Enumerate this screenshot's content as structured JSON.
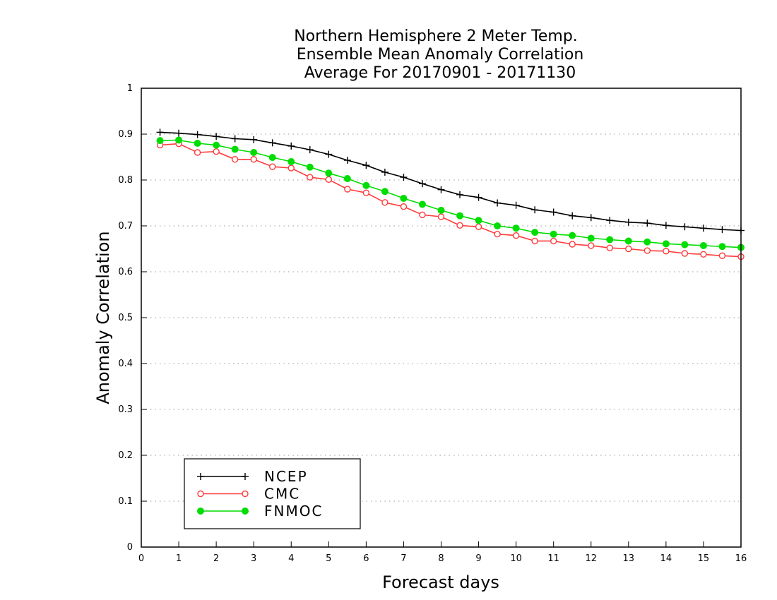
{
  "chart_data": {
    "type": "line",
    "title_lines": [
      "Northern Hemisphere 2 Meter Temp.",
      "Ensemble Mean Anomaly Correlation",
      "Average For 20170901 - 20171130"
    ],
    "xlabel": "Forecast days",
    "ylabel": "Anomaly Correlation",
    "xlim": [
      0,
      16
    ],
    "ylim": [
      0,
      1
    ],
    "xticks": [
      "0",
      "1",
      "2",
      "3",
      "4",
      "5",
      "6",
      "7",
      "8",
      "9",
      "10",
      "11",
      "12",
      "13",
      "14",
      "15",
      "16"
    ],
    "yticks": [
      "0",
      "0.1",
      "0.2",
      "0.3",
      "0.4",
      "0.5",
      "0.6",
      "0.7",
      "0.8",
      "0.9",
      "1"
    ],
    "horizontal_grid": true,
    "legend_position": "bottom-left",
    "x": [
      0.5,
      1,
      1.5,
      2,
      2.5,
      3,
      3.5,
      4,
      4.5,
      5,
      5.5,
      6,
      6.5,
      7,
      7.5,
      8,
      8.5,
      9,
      9.5,
      10,
      10.5,
      11,
      11.5,
      12,
      12.5,
      13,
      13.5,
      14,
      14.5,
      15,
      15.5,
      16
    ],
    "series": [
      {
        "name": "NCEP",
        "color": "#000000",
        "marker": "plus",
        "values": [
          0.904,
          0.902,
          0.899,
          0.895,
          0.89,
          0.888,
          0.881,
          0.874,
          0.866,
          0.856,
          0.843,
          0.832,
          0.817,
          0.806,
          0.792,
          0.779,
          0.768,
          0.762,
          0.75,
          0.745,
          0.735,
          0.73,
          0.722,
          0.718,
          0.712,
          0.708,
          0.706,
          0.701,
          0.698,
          0.695,
          0.692,
          0.69
        ]
      },
      {
        "name": "CMC",
        "color": "#ff3b3b",
        "marker": "open-circle",
        "values": [
          0.876,
          0.879,
          0.86,
          0.862,
          0.845,
          0.845,
          0.829,
          0.826,
          0.806,
          0.801,
          0.78,
          0.772,
          0.751,
          0.742,
          0.724,
          0.72,
          0.701,
          0.698,
          0.682,
          0.679,
          0.667,
          0.667,
          0.66,
          0.657,
          0.652,
          0.65,
          0.646,
          0.645,
          0.64,
          0.638,
          0.635,
          0.633
        ]
      },
      {
        "name": "FNMOC",
        "color": "#00dd00",
        "marker": "filled-circle",
        "values": [
          0.886,
          0.887,
          0.88,
          0.876,
          0.867,
          0.86,
          0.849,
          0.84,
          0.828,
          0.815,
          0.803,
          0.788,
          0.775,
          0.76,
          0.747,
          0.734,
          0.722,
          0.712,
          0.7,
          0.695,
          0.686,
          0.682,
          0.679,
          0.673,
          0.67,
          0.667,
          0.665,
          0.661,
          0.659,
          0.657,
          0.655,
          0.653
        ]
      }
    ]
  }
}
